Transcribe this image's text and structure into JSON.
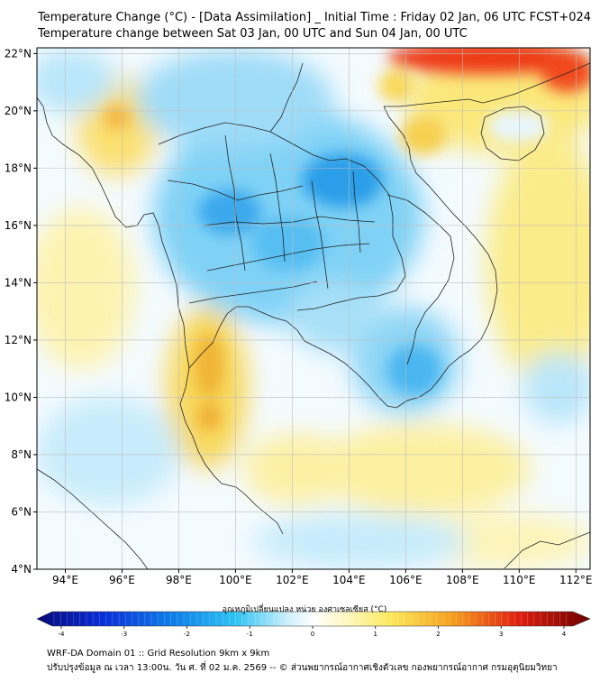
{
  "header": {
    "title_line1": "Temperature Change (°C) - [Data Assimilation] _ Initial Time : Friday 02 Jan, 06 UTC FCST+024",
    "title_line2": "Temperature change between Sat 03 Jan, 00 UTC and Sun 04 Jan, 00 UTC"
  },
  "map": {
    "lat_labels": [
      "22°N",
      "20°N",
      "18°N",
      "16°N",
      "14°N",
      "12°N",
      "10°N",
      "8°N",
      "6°N",
      "4°N"
    ],
    "lat_values": [
      22,
      20,
      18,
      16,
      14,
      12,
      10,
      8,
      6,
      4
    ],
    "lon_labels": [
      "94°E",
      "96°E",
      "98°E",
      "100°E",
      "102°E",
      "104°E",
      "106°E",
      "108°E",
      "110°E",
      "112°E"
    ],
    "lon_values": [
      94,
      96,
      98,
      100,
      102,
      104,
      106,
      108,
      110,
      112
    ],
    "lon_range": [
      93,
      112.5
    ],
    "lat_range": [
      4,
      22.2
    ],
    "warm_color": "#f2b030",
    "hot_color": "#e82010",
    "cool_color": "#2ab0ee",
    "cold_color": "#1880e0"
  },
  "colorbar": {
    "title": "อุณหภูมิเปลี่ยนแปลง หน่วย องศาเซลเซียส (°C)",
    "tick_labels": [
      "-4",
      "-3",
      "-2",
      "-1",
      "0",
      "1",
      "2",
      "3",
      "4"
    ],
    "tick_values": [
      -4,
      -3,
      -2,
      -1,
      0,
      1,
      2,
      3,
      4
    ]
  },
  "footer": {
    "line1": "WRF-DA Domain 01 :: Grid Resolution 9km x 9km",
    "line2": "ปรับปรุงข้อมูล ณ เวลา 13:00น. วัน ศ. ที่ 02 ม.ค. 2569 -- © ส่วนพยากรณ์อากาศเชิงตัวเลข กองพยากรณ์อากาศ กรมอุตุนิยมวิทยา"
  }
}
